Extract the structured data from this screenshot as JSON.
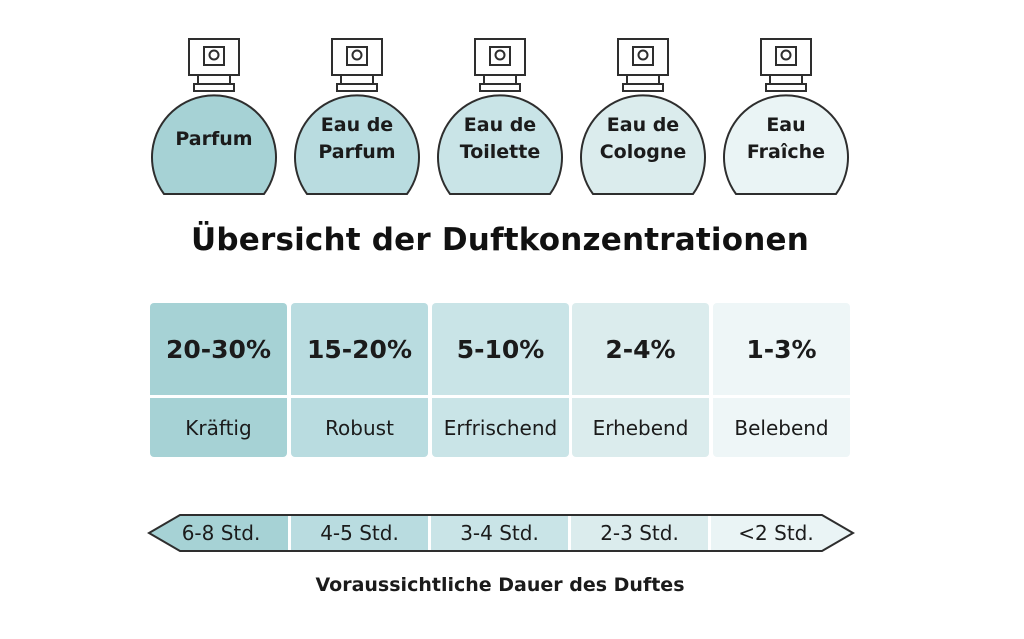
{
  "bottles": [
    {
      "label": "Parfum",
      "color": "#a6d2d5"
    },
    {
      "label": "Eau de\nParfum",
      "color": "#b9dce0"
    },
    {
      "label": "Eau de\nToilette",
      "color": "#c9e4e7"
    },
    {
      "label": "Eau de\nCologne",
      "color": "#dbeced"
    },
    {
      "label": "Eau\nFraîche",
      "color": "#eaf4f5"
    }
  ],
  "title": "Übersicht der Duftkonzentrationen",
  "concentrations": [
    {
      "percent": "20-30%",
      "description": "Kräftig",
      "color": "#a6d2d5"
    },
    {
      "percent": "15-20%",
      "description": "Robust",
      "color": "#b9dce0"
    },
    {
      "percent": "5-10%",
      "description": "Erfrischend",
      "color": "#c9e4e7"
    },
    {
      "percent": "2-4%",
      "description": "Erhebend",
      "color": "#dbeced"
    },
    {
      "percent": "1-3%",
      "description": "Belebend",
      "color": "#eef6f7"
    }
  ],
  "durations": [
    "6-8 Std.",
    "4-5 Std.",
    "3-4 Std.",
    "2-3 Std.",
    "<2 Std."
  ],
  "footer": "Voraussichtliche Dauer des Duftes"
}
